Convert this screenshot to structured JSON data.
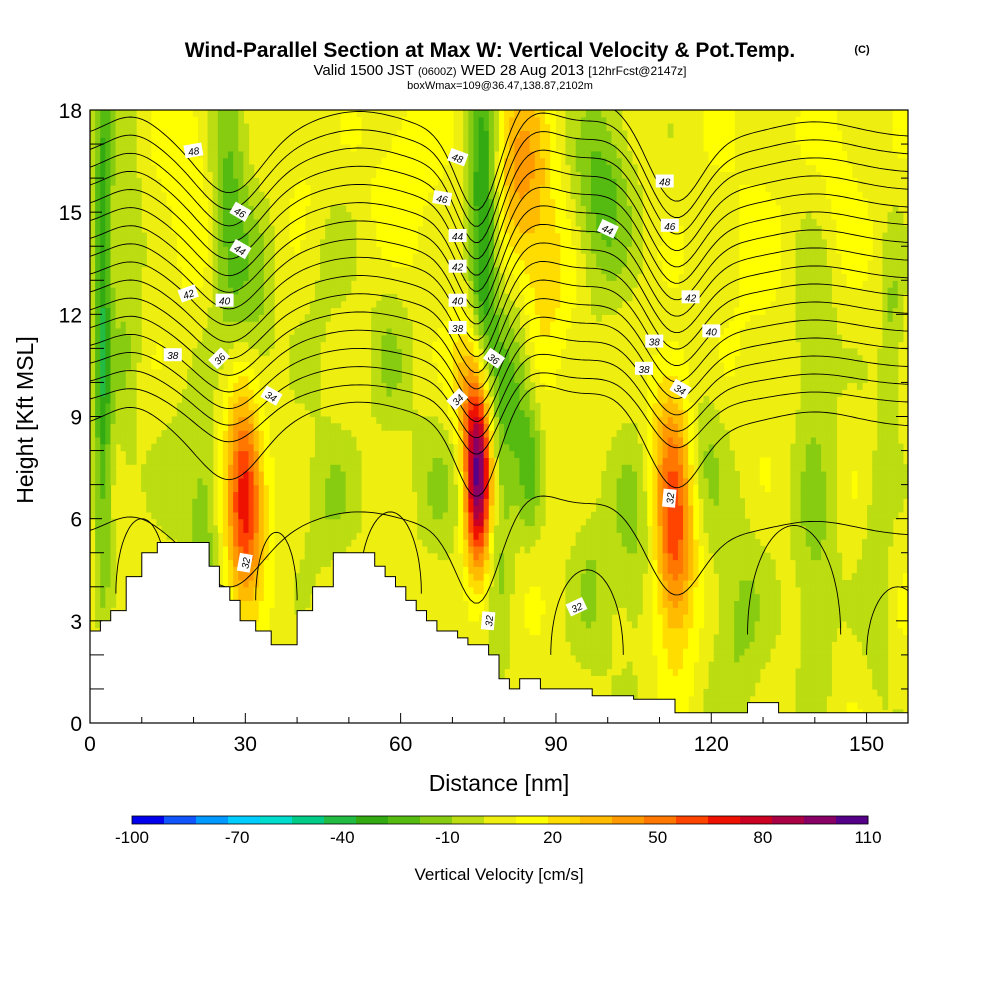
{
  "chart_data": {
    "type": "heatmap",
    "title": "Wind-Parallel Section at Max W: Vertical Velocity & Pot.Temp.",
    "copyright": "(C)",
    "subtitle_main": "Valid 1500 JST",
    "subtitle_utc": "(0600Z)",
    "subtitle_date": "WED 28 Aug 2013",
    "subtitle_fcst": "[12hrFcst@2147z]",
    "box_info": "boxWmax=109@36.47,138.87,2102m",
    "xlabel": "Distance [nm]",
    "ylabel": "Height [Kft MSL]",
    "xlim": [
      0,
      158
    ],
    "ylim": [
      0,
      18
    ],
    "x_ticks": [
      "0",
      "30",
      "60",
      "90",
      "120",
      "150"
    ],
    "y_ticks": [
      "0",
      "3",
      "6",
      "9",
      "12",
      "15",
      "18"
    ],
    "colorbar": {
      "label": "Vertical Velocity [cm/s]",
      "tick_labels": [
        "-100",
        "-70",
        "-40",
        "-10",
        "20",
        "50",
        "80",
        "110"
      ],
      "colors": [
        "#0000ee",
        "#1155ff",
        "#0099ff",
        "#00ccff",
        "#00ddcc",
        "#00cc88",
        "#22bb44",
        "#33aa11",
        "#55bb11",
        "#88cc11",
        "#bbdd11",
        "#eeee11",
        "#ffff00",
        "#ffdd00",
        "#ffbb00",
        "#ff9900",
        "#ff7700",
        "#ff4400",
        "#ee1100",
        "#cc0022",
        "#aa0044",
        "#880066",
        "#550088"
      ]
    },
    "terrain_x": [
      0,
      2,
      2,
      4,
      4,
      7,
      7,
      10,
      10,
      13,
      13,
      16,
      16,
      20,
      20,
      23,
      23,
      25,
      25,
      27,
      27,
      29,
      29,
      32,
      32,
      35,
      35,
      40,
      40,
      43,
      43,
      47,
      47,
      50,
      50,
      55,
      55,
      57,
      57,
      59,
      59,
      61,
      61,
      63,
      63,
      65,
      65,
      67,
      67,
      69,
      69,
      71,
      71,
      73,
      73,
      75,
      75,
      77,
      77,
      79,
      79,
      81,
      81,
      83,
      83,
      87,
      87,
      91,
      91,
      97,
      97,
      105,
      105,
      108,
      108,
      113,
      113,
      127,
      127,
      133,
      133,
      139,
      139,
      158
    ],
    "terrain_y": [
      2.7,
      2.7,
      3.0,
      3.0,
      3.3,
      3.3,
      4.3,
      4.3,
      5.0,
      5.0,
      5.3,
      5.3,
      5.3,
      5.3,
      5.3,
      5.3,
      4.6,
      4.6,
      4.0,
      4.0,
      3.6,
      3.6,
      3.0,
      3.0,
      2.7,
      2.7,
      2.3,
      2.3,
      3.3,
      3.3,
      4.0,
      4.0,
      5.0,
      5.0,
      5.0,
      5.0,
      4.6,
      4.6,
      4.3,
      4.3,
      4.0,
      4.0,
      3.6,
      3.6,
      3.3,
      3.3,
      3.0,
      3.0,
      2.7,
      2.7,
      2.7,
      2.7,
      2.5,
      2.5,
      2.3,
      2.3,
      2.3,
      2.3,
      2.0,
      2.0,
      1.3,
      1.3,
      1.0,
      1.0,
      1.3,
      1.3,
      1.0,
      1.0,
      1.0,
      1.0,
      0.8,
      0.8,
      0.7,
      0.7,
      0.7,
      0.7,
      0.3,
      0.3,
      0.6,
      0.6,
      0.3,
      0.3,
      0.3,
      0.3
    ],
    "updrafts": [
      {
        "x": 30,
        "y": 6.5,
        "sx": 2.5,
        "sy": 1.8,
        "w": 75
      },
      {
        "x": 29,
        "y": 9.5,
        "sx": 3.0,
        "sy": 1.5,
        "w": 20
      },
      {
        "x": 75,
        "y": 7.3,
        "sx": 1.8,
        "sy": 2.0,
        "w": 110
      },
      {
        "x": 73,
        "y": 10.0,
        "sx": 2.5,
        "sy": 1.5,
        "w": 30
      },
      {
        "x": 113,
        "y": 5.5,
        "sx": 2.8,
        "sy": 2.3,
        "w": 60
      },
      {
        "x": 112,
        "y": 9.0,
        "sx": 3.0,
        "sy": 1.5,
        "w": 20
      },
      {
        "x": 83,
        "y": 16.2,
        "sx": 4.0,
        "sy": 2.0,
        "w": 35
      },
      {
        "x": 88,
        "y": 13.0,
        "sx": 4.0,
        "sy": 1.8,
        "w": 18
      },
      {
        "x": 19,
        "y": 16.0,
        "sx": 3.0,
        "sy": 2.0,
        "w": 14
      },
      {
        "x": 60,
        "y": 16.0,
        "sx": 4.0,
        "sy": 2.0,
        "w": 12
      },
      {
        "x": 42,
        "y": 16.5,
        "sx": 3.0,
        "sy": 1.5,
        "w": 10
      },
      {
        "x": 145,
        "y": 16.0,
        "sx": 3.0,
        "sy": 2.0,
        "w": 8
      },
      {
        "x": 128,
        "y": 13.5,
        "sx": 4.0,
        "sy": 3.0,
        "w": 6
      },
      {
        "x": 5,
        "y": 1.5,
        "sx": 4.0,
        "sy": 1.5,
        "w": 12
      }
    ],
    "downdrafts": [
      {
        "x": 2.5,
        "y": 12.0,
        "sx": 1.2,
        "sy": 6.0,
        "w": -45
      },
      {
        "x": 7,
        "y": 13.0,
        "sx": 2.0,
        "sy": 5.0,
        "w": -15
      },
      {
        "x": 27,
        "y": 15.0,
        "sx": 2.5,
        "sy": 3.5,
        "w": -30
      },
      {
        "x": 32,
        "y": 11.5,
        "sx": 2.5,
        "sy": 2.5,
        "w": -20
      },
      {
        "x": 76,
        "y": 14.5,
        "sx": 2.0,
        "sy": 3.5,
        "w": -55
      },
      {
        "x": 82,
        "y": 10.0,
        "sx": 2.5,
        "sy": 2.0,
        "w": -28
      },
      {
        "x": 79,
        "y": 6.0,
        "sx": 2.0,
        "sy": 3.5,
        "w": -18
      },
      {
        "x": 85,
        "y": 7.5,
        "sx": 1.5,
        "sy": 1.5,
        "w": -22
      },
      {
        "x": 99,
        "y": 15.5,
        "sx": 4.0,
        "sy": 2.0,
        "w": -32
      },
      {
        "x": 105,
        "y": 5.5,
        "sx": 3.0,
        "sy": 2.5,
        "w": -18
      },
      {
        "x": 97,
        "y": 4.0,
        "sx": 3.0,
        "sy": 2.0,
        "w": -15
      },
      {
        "x": 118,
        "y": 8.0,
        "sx": 3.0,
        "sy": 1.8,
        "w": -18
      },
      {
        "x": 125,
        "y": 3.0,
        "sx": 4.0,
        "sy": 2.5,
        "w": -18
      },
      {
        "x": 140,
        "y": 5.0,
        "sx": 3.0,
        "sy": 3.0,
        "w": -18
      },
      {
        "x": 152,
        "y": 4.5,
        "sx": 2.0,
        "sy": 3.0,
        "w": -14
      },
      {
        "x": 140,
        "y": 11.5,
        "sx": 3.0,
        "sy": 2.0,
        "w": -15
      },
      {
        "x": 155,
        "y": 11.5,
        "sx": 1.5,
        "sy": 2.0,
        "w": -18
      },
      {
        "x": 22,
        "y": 5.8,
        "sx": 2.0,
        "sy": 2.0,
        "w": -20
      },
      {
        "x": 46,
        "y": 6.5,
        "sx": 4.0,
        "sy": 1.5,
        "w": -15
      },
      {
        "x": 58,
        "y": 11.0,
        "sx": 3.0,
        "sy": 2.0,
        "w": -14
      },
      {
        "x": 68,
        "y": 7.0,
        "sx": 4.0,
        "sy": 2.0,
        "w": -14
      },
      {
        "x": 18,
        "y": 7.5,
        "sx": 4.0,
        "sy": 2.0,
        "w": -10
      },
      {
        "x": 45,
        "y": 13.5,
        "sx": 4.0,
        "sy": 3.0,
        "w": -8
      }
    ],
    "theta_levels": [
      32,
      33,
      34,
      35,
      36,
      37,
      38,
      39,
      40,
      41,
      42,
      43,
      44,
      45,
      46,
      47,
      48,
      49
    ],
    "theta_contour_labels": [
      {
        "text": "48",
        "x": 20,
        "y": 16.8,
        "rot": -10
      },
      {
        "text": "46",
        "x": 29,
        "y": 15.0,
        "rot": 30
      },
      {
        "text": "44",
        "x": 29,
        "y": 13.9,
        "rot": 30
      },
      {
        "text": "42",
        "x": 19,
        "y": 12.6,
        "rot": -20
      },
      {
        "text": "40",
        "x": 26,
        "y": 12.4,
        "rot": 0
      },
      {
        "text": "38",
        "x": 16,
        "y": 10.8,
        "rot": 0
      },
      {
        "text": "36",
        "x": 25,
        "y": 10.7,
        "rot": -45
      },
      {
        "text": "34",
        "x": 35,
        "y": 9.6,
        "rot": 30
      },
      {
        "text": "32",
        "x": 30,
        "y": 4.7,
        "rot": -80
      },
      {
        "text": "48",
        "x": 71,
        "y": 16.6,
        "rot": 20
      },
      {
        "text": "46",
        "x": 68,
        "y": 15.4,
        "rot": 10
      },
      {
        "text": "44",
        "x": 71,
        "y": 14.3,
        "rot": 0
      },
      {
        "text": "42",
        "x": 71,
        "y": 13.4,
        "rot": 0
      },
      {
        "text": "40",
        "x": 71,
        "y": 12.4,
        "rot": 0
      },
      {
        "text": "38",
        "x": 71,
        "y": 11.6,
        "rot": 0
      },
      {
        "text": "36",
        "x": 78,
        "y": 10.7,
        "rot": 35
      },
      {
        "text": "34",
        "x": 71,
        "y": 9.5,
        "rot": -45
      },
      {
        "text": "32",
        "x": 77,
        "y": 3.0,
        "rot": -85
      },
      {
        "text": "32",
        "x": 94,
        "y": 3.4,
        "rot": -25
      },
      {
        "text": "48",
        "x": 111,
        "y": 15.9,
        "rot": 0
      },
      {
        "text": "46",
        "x": 112,
        "y": 14.6,
        "rot": 0
      },
      {
        "text": "44",
        "x": 100,
        "y": 14.5,
        "rot": 25
      },
      {
        "text": "42",
        "x": 116,
        "y": 12.5,
        "rot": 0
      },
      {
        "text": "40",
        "x": 120,
        "y": 11.5,
        "rot": 0
      },
      {
        "text": "38",
        "x": 109,
        "y": 11.2,
        "rot": 0
      },
      {
        "text": "38",
        "x": 107,
        "y": 10.4,
        "rot": 0
      },
      {
        "text": "34",
        "x": 114,
        "y": 9.8,
        "rot": 30
      },
      {
        "text": "32",
        "x": 112,
        "y": 6.6,
        "rot": -85
      }
    ]
  }
}
